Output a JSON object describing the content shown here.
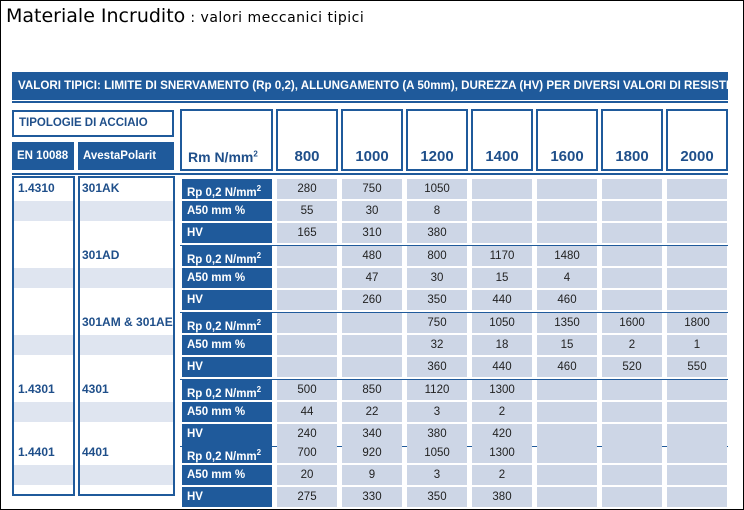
{
  "title": {
    "main": "Materiale Incrudito",
    "sub": ": valori meccanici tipici"
  },
  "banner": "VALORI TIPICI: LIMITE DI SNERVAMENTO (Rp 0,2), ALLUNGAMENTO (A 50mm), DUREZZA (HV) PER DIVERSI VALORI DI RESISTENZE ALLA TRAZIONE (Rm)",
  "header": {
    "tipologie": "TIPOLOGIE DI ACCIAIO",
    "en": "EN 10088",
    "avesta": "AvestaPolarit",
    "rm": "Rm N/mm",
    "rm_sup": "2",
    "strengths": [
      "800",
      "1000",
      "1200",
      "1400",
      "1600",
      "1800",
      "2000"
    ]
  },
  "param_labels": {
    "rp": "Rp 0,2 N/mm",
    "rp_sup": "2",
    "a50": "A50 mm %",
    "hv": "HV"
  },
  "groups": [
    {
      "en": "1.4310",
      "avesta": "301AK",
      "rp": [
        "280",
        "750",
        "1050",
        "",
        "",
        "",
        ""
      ],
      "a50": [
        "55",
        "30",
        "8",
        "",
        "",
        "",
        ""
      ],
      "hv": [
        "165",
        "310",
        "380",
        "",
        "",
        "",
        ""
      ]
    },
    {
      "en": "",
      "avesta": "301AD",
      "rp": [
        "",
        "480",
        "800",
        "1170",
        "1480",
        "",
        ""
      ],
      "a50": [
        "",
        "47",
        "30",
        "15",
        "4",
        "",
        ""
      ],
      "hv": [
        "",
        "260",
        "350",
        "440",
        "460",
        "",
        ""
      ]
    },
    {
      "en": "",
      "avesta": "301AM & 301AE",
      "rp": [
        "",
        "",
        "750",
        "1050",
        "1350",
        "1600",
        "1800"
      ],
      "a50": [
        "",
        "",
        "32",
        "18",
        "15",
        "2",
        "1"
      ],
      "hv": [
        "",
        "",
        "360",
        "440",
        "460",
        "520",
        "550"
      ]
    },
    {
      "en": "1.4301",
      "avesta": "4301",
      "rp": [
        "500",
        "850",
        "1120",
        "1300",
        "",
        "",
        ""
      ],
      "a50": [
        "44",
        "22",
        "3",
        "2",
        "",
        "",
        ""
      ],
      "hv": [
        "240",
        "340",
        "380",
        "420",
        "",
        "",
        ""
      ]
    },
    {
      "en": "1.4401",
      "avesta": "4401",
      "rp": [
        "700",
        "920",
        "1050",
        "1300",
        "",
        "",
        ""
      ],
      "a50": [
        "20",
        "9",
        "3",
        "2",
        "",
        "",
        ""
      ],
      "hv": [
        "275",
        "330",
        "350",
        "380",
        "",
        "",
        ""
      ]
    }
  ],
  "colors": {
    "primary": "#1f5a9b",
    "cell": "#cdd6e6",
    "stripe": "#dfe5f0",
    "text_blue": "#1f4f8a"
  }
}
